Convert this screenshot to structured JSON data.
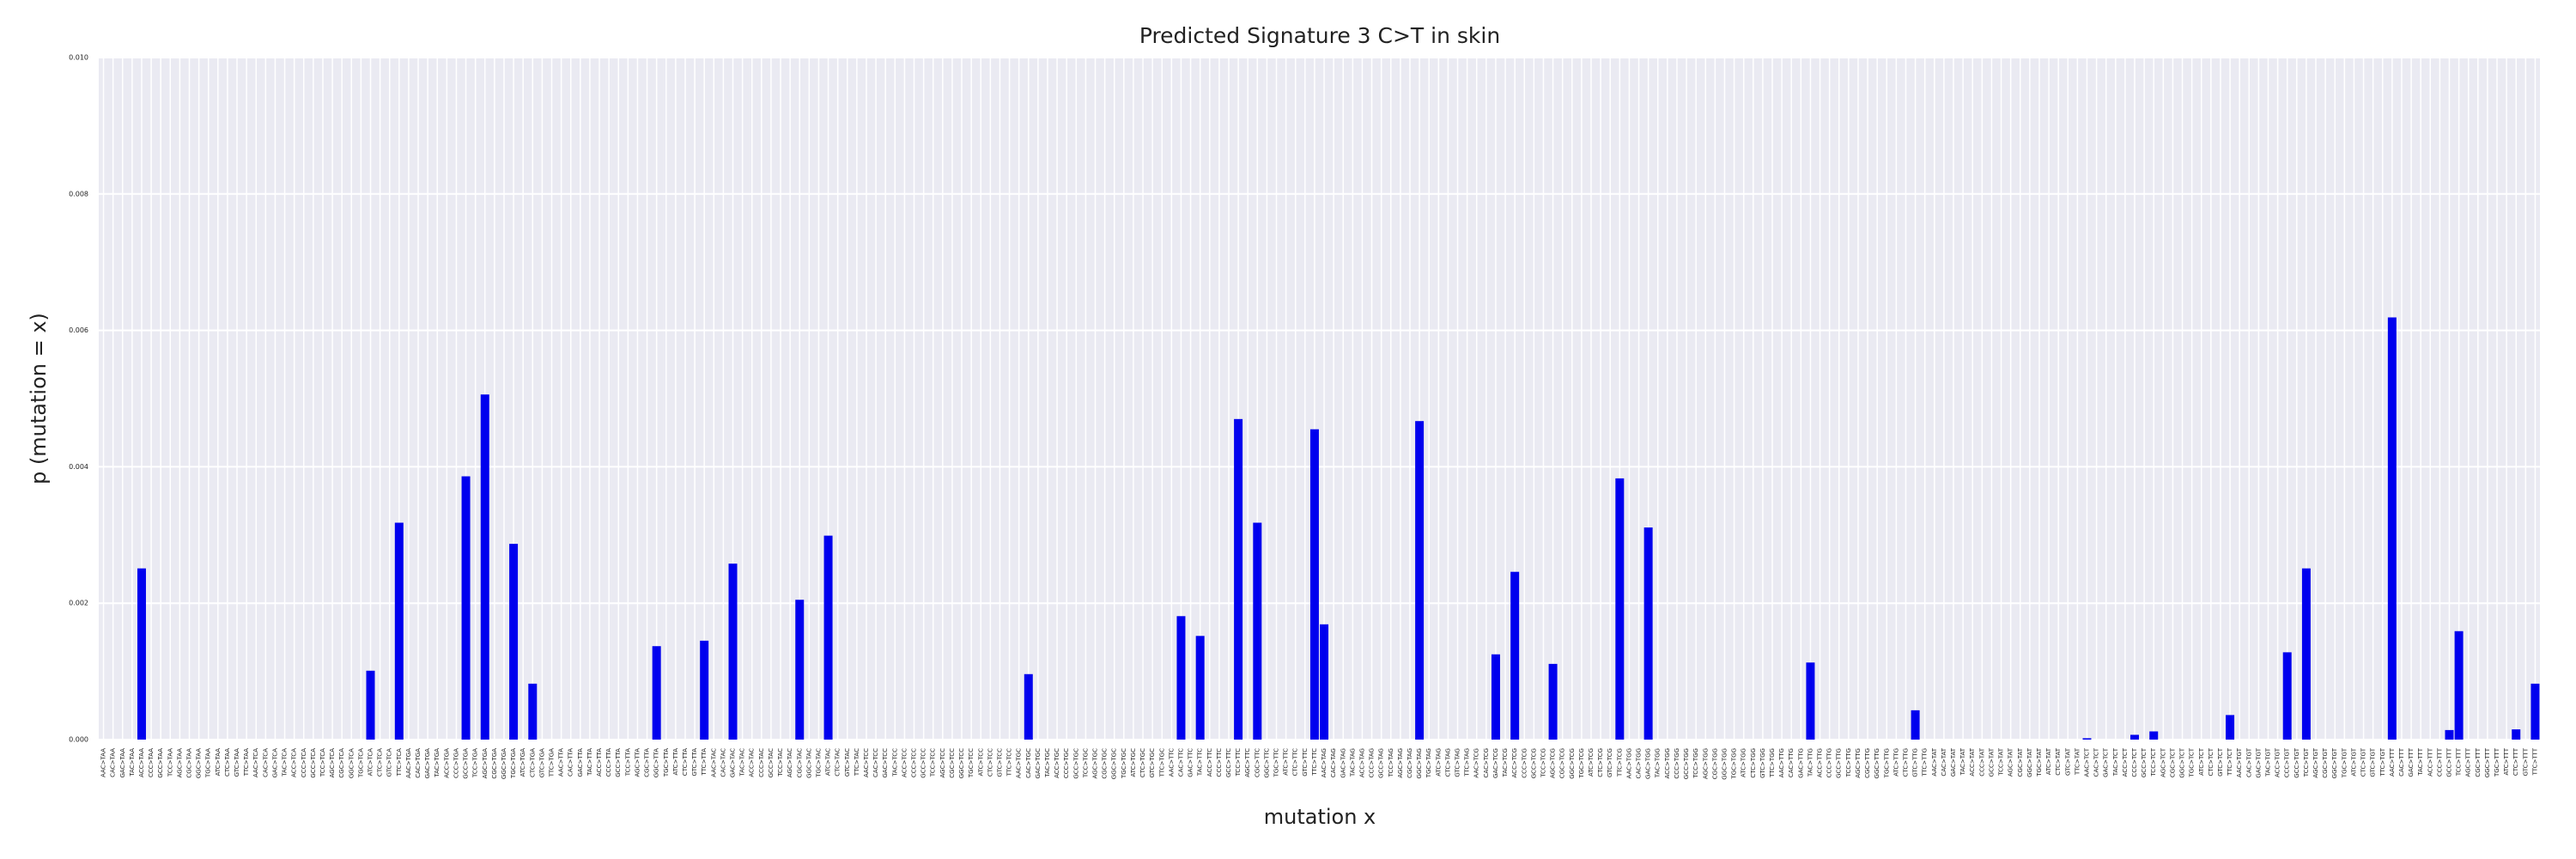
{
  "chart_data": {
    "type": "bar",
    "title": "Predicted Signature 3 C>T in skin",
    "x_label": "mutation x",
    "y_label": "p (mutation = x)",
    "color": "#0000ee",
    "grid": true,
    "ylim": [
      0,
      0.01
    ],
    "yticks": [
      {
        "value": 0,
        "label": "0.000"
      },
      {
        "value": 0.002,
        "label": "0.002"
      },
      {
        "value": 0.004,
        "label": "0.004"
      },
      {
        "value": 0.006,
        "label": "0.006"
      },
      {
        "value": 0.008,
        "label": "0.008"
      },
      {
        "value": 0.01,
        "label": "0.010"
      }
    ],
    "categories": [
      "AAC>TAA",
      "CAC>TAA",
      "GAC>TAA",
      "TAC>TAA",
      "ACC>TAA",
      "CCC>TAA",
      "GCC>TAA",
      "TCC>TAA",
      "AGC>TAA",
      "CGC>TAA",
      "GGC>TAA",
      "TGC>TAA",
      "ATC>TAA",
      "CTC>TAA",
      "GTC>TAA",
      "TTC>TAA",
      "AAC>TCA",
      "CAC>TCA",
      "GAC>TCA",
      "TAC>TCA",
      "ACC>TCA",
      "CCC>TCA",
      "GCC>TCA",
      "TCC>TCA",
      "AGC>TCA",
      "CGC>TCA",
      "GGC>TCA",
      "TGC>TCA",
      "ATC>TCA",
      "CTC>TCA",
      "GTC>TCA",
      "TTC>TCA",
      "AAC>TGA",
      "CAC>TGA",
      "GAC>TGA",
      "TAC>TGA",
      "ACC>TGA",
      "CCC>TGA",
      "GCC>TGA",
      "TCC>TGA",
      "AGC>TGA",
      "CGC>TGA",
      "GGC>TGA",
      "TGC>TGA",
      "ATC>TGA",
      "CTC>TGA",
      "GTC>TGA",
      "TTC>TGA",
      "AAC>TTA",
      "CAC>TTA",
      "GAC>TTA",
      "TAC>TTA",
      "ACC>TTA",
      "CCC>TTA",
      "GCC>TTA",
      "TCC>TTA",
      "AGC>TTA",
      "CGC>TTA",
      "GGC>TTA",
      "TGC>TTA",
      "ATC>TTA",
      "CTC>TTA",
      "GTC>TTA",
      "TTC>TTA",
      "AAC>TAC",
      "CAC>TAC",
      "GAC>TAC",
      "TAC>TAC",
      "ACC>TAC",
      "CCC>TAC",
      "GCC>TAC",
      "TCC>TAC",
      "AGC>TAC",
      "CGC>TAC",
      "GGC>TAC",
      "TGC>TAC",
      "ATC>TAC",
      "CTC>TAC",
      "GTC>TAC",
      "TTC>TAC",
      "AAC>TCC",
      "CAC>TCC",
      "GAC>TCC",
      "TAC>TCC",
      "ACC>TCC",
      "CCC>TCC",
      "GCC>TCC",
      "TCC>TCC",
      "AGC>TCC",
      "CGC>TCC",
      "GGC>TCC",
      "TGC>TCC",
      "ATC>TCC",
      "CTC>TCC",
      "GTC>TCC",
      "TTC>TCC",
      "AAC>TGC",
      "CAC>TGC",
      "GAC>TGC",
      "TAC>TGC",
      "ACC>TGC",
      "CCC>TGC",
      "GCC>TGC",
      "TCC>TGC",
      "AGC>TGC",
      "CGC>TGC",
      "GGC>TGC",
      "TGC>TGC",
      "ATC>TGC",
      "CTC>TGC",
      "GTC>TGC",
      "TTC>TGC",
      "AAC>TTC",
      "CAC>TTC",
      "GAC>TTC",
      "TAC>TTC",
      "ACC>TTC",
      "CCC>TTC",
      "GCC>TTC",
      "TCC>TTC",
      "AGC>TTC",
      "CGC>TTC",
      "GGC>TTC",
      "TGC>TTC",
      "ATC>TTC",
      "CTC>TTC",
      "GTC>TTC",
      "TTC>TTC",
      "AAC>TAG",
      "CAC>TAG",
      "GAC>TAG",
      "TAC>TAG",
      "ACC>TAG",
      "CCC>TAG",
      "GCC>TAG",
      "TCC>TAG",
      "AGC>TAG",
      "CGC>TAG",
      "GGC>TAG",
      "TGC>TAG",
      "ATC>TAG",
      "CTC>TAG",
      "GTC>TAG",
      "TTC>TAG",
      "AAC>TCG",
      "CAC>TCG",
      "GAC>TCG",
      "TAC>TCG",
      "ACC>TCG",
      "CCC>TCG",
      "GCC>TCG",
      "TCC>TCG",
      "AGC>TCG",
      "CGC>TCG",
      "GGC>TCG",
      "TGC>TCG",
      "ATC>TCG",
      "CTC>TCG",
      "GTC>TCG",
      "TTC>TCG",
      "AAC>TGG",
      "CAC>TGG",
      "GAC>TGG",
      "TAC>TGG",
      "ACC>TGG",
      "CCC>TGG",
      "GCC>TGG",
      "TCC>TGG",
      "AGC>TGG",
      "CGC>TGG",
      "GGC>TGG",
      "TGC>TGG",
      "ATC>TGG",
      "CTC>TGG",
      "GTC>TGG",
      "TTC>TGG",
      "AAC>TTG",
      "CAC>TTG",
      "GAC>TTG",
      "TAC>TTG",
      "ACC>TTG",
      "CCC>TTG",
      "GCC>TTG",
      "TCC>TTG",
      "AGC>TTG",
      "CGC>TTG",
      "GGC>TTG",
      "TGC>TTG",
      "ATC>TTG",
      "CTC>TTG",
      "GTC>TTG",
      "TTC>TTG",
      "AAC>TAT",
      "CAC>TAT",
      "GAC>TAT",
      "TAC>TAT",
      "ACC>TAT",
      "CCC>TAT",
      "GCC>TAT",
      "TCC>TAT",
      "AGC>TAT",
      "CGC>TAT",
      "GGC>TAT",
      "TGC>TAT",
      "ATC>TAT",
      "CTC>TAT",
      "GTC>TAT",
      "TTC>TAT",
      "AAC>TCT",
      "CAC>TCT",
      "GAC>TCT",
      "TAC>TCT",
      "ACC>TCT",
      "CCC>TCT",
      "GCC>TCT",
      "TCC>TCT",
      "AGC>TCT",
      "CGC>TCT",
      "GGC>TCT",
      "TGC>TCT",
      "ATC>TCT",
      "CTC>TCT",
      "GTC>TCT",
      "TTC>TCT",
      "AAC>TGT",
      "CAC>TGT",
      "GAC>TGT",
      "TAC>TGT",
      "ACC>TGT",
      "CCC>TGT",
      "GCC>TGT",
      "TCC>TGT",
      "AGC>TGT",
      "CGC>TGT",
      "GGC>TGT",
      "TGC>TGT",
      "ATC>TGT",
      "CTC>TGT",
      "GTC>TGT",
      "TTC>TGT",
      "AAC>TTT",
      "CAC>TTT",
      "GAC>TTT",
      "TAC>TTT",
      "ACC>TTT",
      "CCC>TTT",
      "GCC>TTT",
      "TCC>TTT",
      "AGC>TTT",
      "CGC>TTT",
      "GGC>TTT",
      "TGC>TTT",
      "ATC>TTT",
      "CTC>TTT",
      "GTC>TTT",
      "TTC>TTT"
    ],
    "values": [
      0,
      0,
      0,
      0,
      0.00251,
      0,
      0,
      0,
      0,
      0,
      0,
      0,
      0,
      0,
      0,
      0,
      0,
      0,
      0,
      0,
      0,
      0,
      0,
      0,
      0,
      0,
      0,
      0,
      0.00101,
      0,
      0,
      0.00318,
      0,
      0,
      0,
      0,
      0,
      0,
      0.00386,
      0,
      0.00506,
      0,
      0,
      0.00287,
      0,
      0.00082,
      0,
      0,
      0,
      0,
      0,
      0,
      0,
      0,
      0,
      0,
      0,
      0,
      0.00137,
      0,
      0,
      0,
      0,
      0.00145,
      0,
      0,
      0.00258,
      0,
      0,
      0,
      0,
      0,
      0,
      0.00205,
      0,
      0,
      0.00299,
      0,
      0,
      0,
      0,
      0,
      0,
      0,
      0,
      0,
      0,
      0,
      0,
      0,
      0,
      0,
      0,
      0,
      0,
      0,
      0,
      0.00096,
      0,
      0,
      0,
      0,
      0,
      0,
      0,
      0,
      0,
      0,
      0,
      0,
      0,
      0,
      0,
      0.00181,
      0,
      0.00152,
      0,
      0,
      0,
      0.0047,
      0,
      0.00318,
      0,
      0,
      0,
      0,
      0,
      0.00455,
      0.00169,
      0,
      0,
      0,
      0,
      0,
      0,
      0,
      0,
      0,
      0.00467,
      0,
      0,
      0,
      0,
      0,
      0,
      0,
      0.00125,
      0,
      0.00246,
      0,
      0,
      0,
      0.00111,
      0,
      0,
      0,
      0,
      0,
      0,
      0.00383,
      0,
      0,
      0.00311,
      0,
      0,
      0,
      0,
      0,
      0,
      0,
      0,
      0,
      0,
      0,
      0,
      0,
      0,
      0,
      0,
      0.00113,
      0,
      0,
      0,
      0,
      0,
      0,
      0,
      0,
      0,
      0,
      0.00043,
      0,
      0,
      0,
      0,
      0,
      0,
      0,
      0,
      0,
      0,
      0,
      0,
      0,
      0,
      0,
      0,
      0,
      2e-05,
      0,
      0,
      0,
      0,
      7e-05,
      0,
      0.00012,
      0,
      0,
      0,
      0,
      0,
      0,
      0,
      0.00036,
      0,
      0,
      0,
      0,
      0,
      0.00128,
      0,
      0.00251,
      0,
      0,
      0,
      0,
      0,
      0,
      0,
      0,
      0.00619,
      0,
      0,
      0,
      0,
      0,
      0.00014,
      0.00159,
      0,
      0,
      0,
      0,
      0,
      0.00015,
      0,
      0.00082
    ]
  }
}
